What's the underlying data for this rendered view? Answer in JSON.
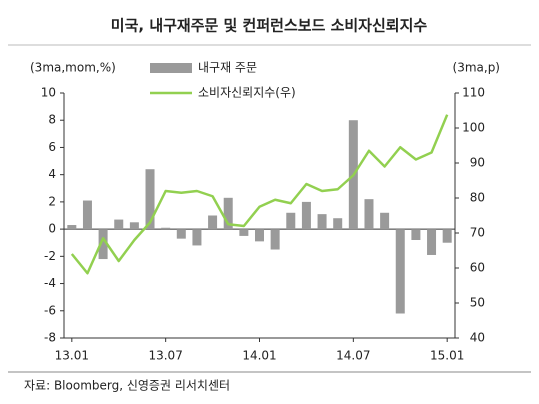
{
  "chart_data": {
    "type": "bar_line",
    "title": "미국, 내구재주문 및 컨퍼런스보드 소비자신뢰지수",
    "y_label": "(3ma,mom,%)",
    "y2_label": "(3ma,p)",
    "source": "자료: Bloomberg, 신영증권 리서치센터",
    "categories": [
      "13.01",
      null,
      null,
      null,
      null,
      null,
      "13.07",
      null,
      null,
      null,
      null,
      null,
      "14.01",
      null,
      null,
      null,
      null,
      null,
      "14.07",
      null,
      null,
      null,
      null,
      null,
      "15.01"
    ],
    "series": [
      {
        "name": "내구재 주문",
        "type": "bar",
        "color": "#9a9a9a",
        "values": [
          0.3,
          2.1,
          -2.2,
          0.7,
          0.5,
          4.4,
          0.1,
          -0.7,
          -1.2,
          1.0,
          2.3,
          -0.5,
          -0.9,
          -1.5,
          1.2,
          2.0,
          1.1,
          0.8,
          8.0,
          2.2,
          1.2,
          -6.2,
          -0.8,
          -1.9,
          -1.0
        ]
      },
      {
        "name": "소비자신뢰지수(우)",
        "type": "line",
        "axis": "y2",
        "color": "#92d050",
        "values": [
          64,
          58.5,
          68.5,
          62,
          68,
          73,
          82,
          81.5,
          82,
          80.5,
          72.5,
          72,
          77.5,
          79.5,
          78.5,
          84,
          82,
          82.5,
          86.5,
          93.5,
          89,
          94.5,
          91,
          93,
          103.8
        ]
      }
    ],
    "ylim": [
      -8,
      10
    ],
    "yticks": [
      -8,
      -6,
      -4,
      -2,
      0,
      2,
      4,
      6,
      8,
      10
    ],
    "y2lim": [
      40,
      110
    ],
    "y2ticks": [
      40,
      50,
      60,
      70,
      80,
      90,
      100,
      110
    ]
  }
}
